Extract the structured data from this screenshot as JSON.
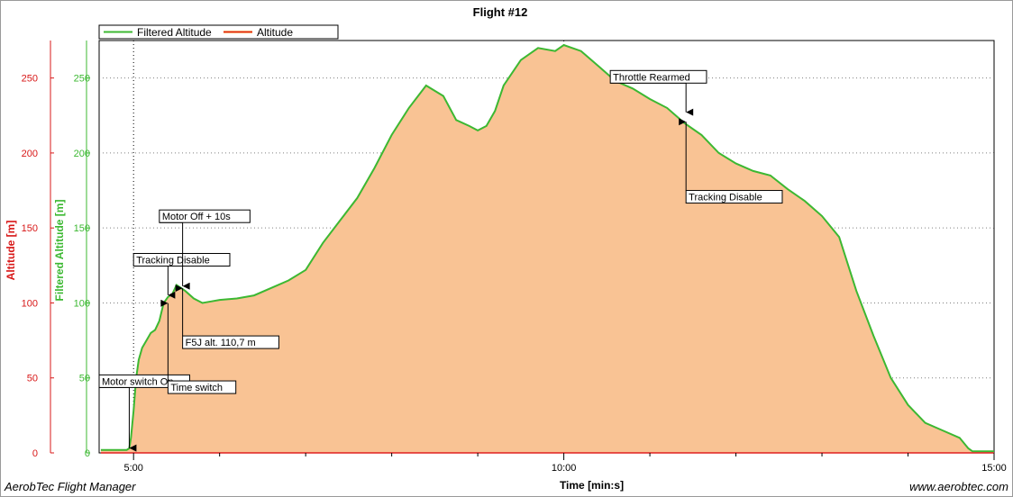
{
  "footer": {
    "left": "AerobTec Flight Manager",
    "right": "www.aerobtec.com"
  },
  "chart_data": {
    "type": "area",
    "title": "Flight #12",
    "xlabel": "Time [min:s]",
    "ylabel_left": "Altitude [m]",
    "ylabel_right": "Filtered Altitude [m]",
    "xlim": [
      4.6,
      15.0
    ],
    "ylim": [
      0,
      275
    ],
    "x_ticks": [
      {
        "v": 5,
        "label": "5:00"
      },
      {
        "v": 10,
        "label": "10:00"
      },
      {
        "v": 15,
        "label": "15:00"
      }
    ],
    "x_minor": [
      6,
      7,
      8,
      9,
      11,
      12,
      13,
      14
    ],
    "y_ticks": [
      0,
      50,
      100,
      150,
      200,
      250
    ],
    "grid": true,
    "legend_position": "top-left",
    "colors": {
      "filtered_line": "#3cb832",
      "area_fill": "#f9c394",
      "altitude_line": "#e02020",
      "left_axis": "#d81818",
      "right_axis": "#3cb832"
    },
    "series": [
      {
        "name": "Filtered Altitude",
        "x": [
          4.62,
          4.92,
          4.95,
          4.97,
          5.0,
          5.03,
          5.06,
          5.1,
          5.15,
          5.2,
          5.25,
          5.3,
          5.35,
          5.4,
          5.45,
          5.5,
          5.6,
          5.7,
          5.8,
          5.9,
          6.0,
          6.2,
          6.4,
          6.6,
          6.8,
          7.0,
          7.2,
          7.4,
          7.6,
          7.8,
          8.0,
          8.2,
          8.4,
          8.6,
          8.75,
          8.9,
          9.0,
          9.1,
          9.2,
          9.3,
          9.5,
          9.7,
          9.9,
          10.0,
          10.2,
          10.4,
          10.6,
          10.8,
          11.0,
          11.2,
          11.4,
          11.6,
          11.8,
          12.0,
          12.2,
          12.4,
          12.6,
          12.8,
          13.0,
          13.2,
          13.4,
          13.6,
          13.8,
          14.0,
          14.2,
          14.4,
          14.6,
          14.7,
          14.75,
          14.85,
          15.0
        ],
        "values": [
          2,
          2,
          3,
          10,
          28,
          50,
          62,
          70,
          75,
          80,
          82,
          88,
          100,
          104,
          106,
          112,
          108,
          103,
          100,
          101,
          102,
          103,
          105,
          110,
          115,
          122,
          140,
          155,
          170,
          190,
          212,
          230,
          245,
          238,
          222,
          218,
          215,
          218,
          228,
          245,
          262,
          270,
          268,
          272,
          268,
          258,
          248,
          243,
          236,
          230,
          220,
          212,
          200,
          193,
          188,
          185,
          176,
          168,
          158,
          144,
          108,
          78,
          50,
          32,
          20,
          15,
          10,
          3,
          1,
          1,
          1
        ]
      },
      {
        "name": "Altitude",
        "x": [
          4.62,
          15.0
        ],
        "values": [
          0,
          0
        ]
      }
    ],
    "annotations": [
      {
        "label": "Motor switch On",
        "x": 4.95,
        "y": 2,
        "dir": "down",
        "tx": 4.6,
        "ty": 52
      },
      {
        "label": "Tracking Disable",
        "x": 5.4,
        "y": 104,
        "dir": "down",
        "tx": 5.0,
        "ty": 133
      },
      {
        "label": "Motor Off + 10s",
        "x": 5.57,
        "y": 110,
        "dir": "down",
        "tx": 5.3,
        "ty": 162
      },
      {
        "label": "Time switch",
        "x": 5.4,
        "y": 101,
        "dir": "up",
        "tx": 5.4,
        "ty": 48
      },
      {
        "label": "F5J alt. 110,7 m",
        "x": 5.57,
        "y": 111,
        "dir": "up",
        "tx": 5.57,
        "ty": 78
      },
      {
        "label": "Throttle Rearmed",
        "x": 11.42,
        "y": 226,
        "dir": "down",
        "tx": 10.54,
        "ty": 255
      },
      {
        "label": "Tracking Disable",
        "x": 11.42,
        "y": 222,
        "dir": "up",
        "tx": 11.42,
        "ty": 175
      }
    ]
  }
}
